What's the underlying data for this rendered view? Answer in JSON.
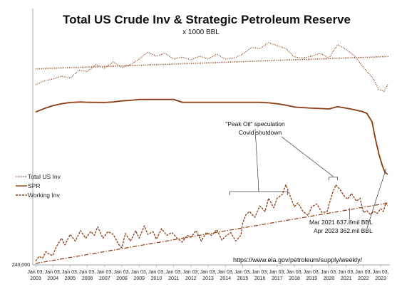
{
  "chart_data": {
    "type": "line",
    "title": "Total US Crude Inv & Strategic Petroleum Reserve",
    "subtitle": "x 1000 BBL",
    "y_tick_label": "240,000",
    "x_ticks": [
      {
        "year": 2003,
        "l1": "Jan 03,",
        "l2": "2003"
      },
      {
        "year": 2004,
        "l1": "Jan 03,",
        "l2": "2004"
      },
      {
        "year": 2005,
        "l1": "Jan 03,",
        "l2": "2005"
      },
      {
        "year": 2006,
        "l1": "Jan 03,",
        "l2": "2006"
      },
      {
        "year": 2007,
        "l1": "Jan 03,",
        "l2": "2007"
      },
      {
        "year": 2008,
        "l1": "Jan 03,",
        "l2": "2008"
      },
      {
        "year": 2009,
        "l1": "Jan 03,",
        "l2": "2009"
      },
      {
        "year": 2010,
        "l1": "Jan 03,",
        "l2": "2010"
      },
      {
        "year": 2011,
        "l1": "Jan 03,",
        "l2": "2011"
      },
      {
        "year": 2012,
        "l1": "Jan 03,",
        "l2": "2012"
      },
      {
        "year": 2013,
        "l1": "Jan 03,",
        "l2": "2013"
      },
      {
        "year": 2014,
        "l1": "Jan 03,",
        "l2": "2014"
      },
      {
        "year": 2015,
        "l1": "Jan 03,",
        "l2": "2015"
      },
      {
        "year": 2016,
        "l1": "Jan 03,",
        "l2": "2016"
      },
      {
        "year": 2017,
        "l1": "Jan 03,",
        "l2": "2017"
      },
      {
        "year": 2018,
        "l1": "Jan 03,",
        "l2": "2018"
      },
      {
        "year": 2019,
        "l1": "Jan 03,",
        "l2": "2019"
      },
      {
        "year": 2020,
        "l1": "Jan 03,",
        "l2": "2020"
      },
      {
        "year": 2021,
        "l1": "Jan 03,",
        "l2": "2021"
      },
      {
        "year": 2022,
        "l1": "Jan 03,",
        "l2": "2022"
      },
      {
        "year": 2023,
        "l1": "Jan 03,",
        "l2": "2023"
      }
    ],
    "x_range": [
      2003.0,
      2023.45
    ],
    "y_range": [
      240000,
      1450000
    ],
    "grid": false,
    "legend_position": "middle-left",
    "series": [
      {
        "name": "Total US Inv",
        "style": "dotted",
        "color": "#8B3A12",
        "points": [
          [
            2003.0,
            1185000
          ],
          [
            2003.5,
            1205000
          ],
          [
            2004.0,
            1215000
          ],
          [
            2004.5,
            1230000
          ],
          [
            2005.0,
            1220000
          ],
          [
            2005.5,
            1260000
          ],
          [
            2006.0,
            1255000
          ],
          [
            2006.5,
            1290000
          ],
          [
            2007.0,
            1270000
          ],
          [
            2007.5,
            1305000
          ],
          [
            2008.0,
            1275000
          ],
          [
            2008.5,
            1290000
          ],
          [
            2009.0,
            1320000
          ],
          [
            2009.5,
            1355000
          ],
          [
            2010.0,
            1335000
          ],
          [
            2010.5,
            1350000
          ],
          [
            2011.0,
            1320000
          ],
          [
            2011.5,
            1330000
          ],
          [
            2012.0,
            1315000
          ],
          [
            2012.5,
            1335000
          ],
          [
            2013.0,
            1320000
          ],
          [
            2013.5,
            1345000
          ],
          [
            2014.0,
            1320000
          ],
          [
            2014.5,
            1325000
          ],
          [
            2015.0,
            1345000
          ],
          [
            2015.5,
            1380000
          ],
          [
            2016.0,
            1375000
          ],
          [
            2016.5,
            1405000
          ],
          [
            2017.0,
            1390000
          ],
          [
            2017.5,
            1375000
          ],
          [
            2018.0,
            1330000
          ],
          [
            2018.5,
            1325000
          ],
          [
            2019.0,
            1335000
          ],
          [
            2019.5,
            1350000
          ],
          [
            2020.0,
            1325000
          ],
          [
            2020.5,
            1395000
          ],
          [
            2021.0,
            1370000
          ],
          [
            2021.5,
            1335000
          ],
          [
            2022.0,
            1275000
          ],
          [
            2022.5,
            1225000
          ],
          [
            2022.9,
            1160000
          ],
          [
            2023.2,
            1150000
          ],
          [
            2023.4,
            1185000
          ]
        ]
      },
      {
        "name": "SPR",
        "style": "solid",
        "color": "#8B3A12",
        "points": [
          [
            2003.0,
            1042000
          ],
          [
            2003.5,
            1060000
          ],
          [
            2004.0,
            1075000
          ],
          [
            2004.5,
            1085000
          ],
          [
            2005.0,
            1092000
          ],
          [
            2005.6,
            1095000
          ],
          [
            2006.0,
            1093000
          ],
          [
            2007.0,
            1092000
          ],
          [
            2007.5,
            1095000
          ],
          [
            2008.0,
            1100000
          ],
          [
            2008.5,
            1103000
          ],
          [
            2009.0,
            1108000
          ],
          [
            2010.0,
            1108000
          ],
          [
            2011.0,
            1108000
          ],
          [
            2011.5,
            1093000
          ],
          [
            2012.0,
            1093000
          ],
          [
            2013.0,
            1093000
          ],
          [
            2014.0,
            1093000
          ],
          [
            2015.0,
            1093000
          ],
          [
            2016.0,
            1093000
          ],
          [
            2016.5,
            1090000
          ],
          [
            2017.0,
            1085000
          ],
          [
            2017.5,
            1078000
          ],
          [
            2018.0,
            1068000
          ],
          [
            2018.5,
            1065000
          ],
          [
            2019.0,
            1062000
          ],
          [
            2019.5,
            1060000
          ],
          [
            2020.0,
            1058000
          ],
          [
            2020.5,
            1070000
          ],
          [
            2021.0,
            1062000
          ],
          [
            2021.25,
            1058000
          ],
          [
            2021.5,
            1053000
          ],
          [
            2021.9,
            1045000
          ],
          [
            2022.2,
            1035000
          ],
          [
            2022.5,
            990000
          ],
          [
            2022.7,
            900000
          ],
          [
            2022.9,
            820000
          ],
          [
            2023.1,
            760000
          ],
          [
            2023.25,
            725000
          ],
          [
            2023.4,
            715000
          ]
        ]
      },
      {
        "name": "Working Inv",
        "style": "dashed",
        "color": "#8B3A12",
        "points": [
          [
            2003.0,
            260000
          ],
          [
            2003.2,
            285000
          ],
          [
            2003.4,
            275000
          ],
          [
            2003.6,
            310000
          ],
          [
            2003.8,
            295000
          ],
          [
            2004.0,
            290000
          ],
          [
            2004.2,
            335000
          ],
          [
            2004.5,
            380000
          ],
          [
            2004.7,
            345000
          ],
          [
            2005.0,
            400000
          ],
          [
            2005.3,
            365000
          ],
          [
            2005.6,
            420000
          ],
          [
            2005.9,
            380000
          ],
          [
            2006.2,
            415000
          ],
          [
            2006.4,
            395000
          ],
          [
            2006.6,
            440000
          ],
          [
            2006.9,
            380000
          ],
          [
            2007.2,
            415000
          ],
          [
            2007.5,
            400000
          ],
          [
            2007.8,
            350000
          ],
          [
            2008.0,
            330000
          ],
          [
            2008.2,
            405000
          ],
          [
            2008.5,
            365000
          ],
          [
            2008.8,
            420000
          ],
          [
            2009.0,
            380000
          ],
          [
            2009.3,
            445000
          ],
          [
            2009.5,
            400000
          ],
          [
            2009.8,
            415000
          ],
          [
            2010.0,
            375000
          ],
          [
            2010.3,
            430000
          ],
          [
            2010.6,
            395000
          ],
          [
            2010.9,
            410000
          ],
          [
            2011.2,
            380000
          ],
          [
            2011.5,
            360000
          ],
          [
            2011.8,
            395000
          ],
          [
            2012.0,
            385000
          ],
          [
            2012.3,
            420000
          ],
          [
            2012.6,
            365000
          ],
          [
            2012.9,
            410000
          ],
          [
            2013.2,
            395000
          ],
          [
            2013.5,
            425000
          ],
          [
            2013.8,
            370000
          ],
          [
            2014.0,
            390000
          ],
          [
            2014.3,
            410000
          ],
          [
            2014.6,
            365000
          ],
          [
            2014.9,
            395000
          ],
          [
            2015.0,
            460000
          ],
          [
            2015.2,
            505000
          ],
          [
            2015.4,
            520000
          ],
          [
            2015.7,
            490000
          ],
          [
            2016.0,
            550000
          ],
          [
            2016.3,
            520000
          ],
          [
            2016.5,
            590000
          ],
          [
            2016.8,
            540000
          ],
          [
            2017.0,
            590000
          ],
          [
            2017.3,
            610000
          ],
          [
            2017.5,
            660000
          ],
          [
            2017.8,
            590000
          ],
          [
            2018.0,
            545000
          ],
          [
            2018.2,
            565000
          ],
          [
            2018.5,
            520000
          ],
          [
            2018.8,
            500000
          ],
          [
            2019.0,
            545000
          ],
          [
            2019.3,
            560000
          ],
          [
            2019.6,
            515000
          ],
          [
            2019.9,
            520000
          ],
          [
            2020.0,
            555000
          ],
          [
            2020.2,
            615000
          ],
          [
            2020.4,
            660000
          ],
          [
            2020.6,
            640000
          ],
          [
            2020.9,
            600000
          ],
          [
            2021.1,
            585000
          ],
          [
            2021.3,
            615000
          ],
          [
            2021.6,
            575000
          ],
          [
            2021.8,
            590000
          ],
          [
            2022.0,
            515000
          ],
          [
            2022.2,
            525000
          ],
          [
            2022.4,
            505000
          ],
          [
            2022.6,
            520000
          ],
          [
            2022.8,
            510000
          ],
          [
            2023.0,
            535000
          ],
          [
            2023.15,
            520000
          ],
          [
            2023.3,
            565000
          ],
          [
            2023.4,
            550000
          ]
        ]
      }
    ],
    "trendlines": [
      {
        "of": "Total US Inv",
        "style": "dotted",
        "from": [
          2003.0,
          1268000
        ],
        "to": [
          2023.45,
          1333000
        ]
      },
      {
        "of": "Working Inv",
        "style": "dash-dot",
        "from": [
          2003.0,
          248000
        ],
        "to": [
          2023.45,
          565000
        ]
      }
    ],
    "legend": [
      "Total US Inv",
      "SPR",
      "Working Inv"
    ],
    "annotations": {
      "peak_oil": "\"Peak Oil\" speculation",
      "covid": "Covid shutdown",
      "mar2021": "Mar 2021 637.8mil BBL",
      "apr2023": "Apr 2023 362.mil BBL",
      "source": "https://www.eia.gov/petroleum/supply/weekly/"
    },
    "annotation_anchors": {
      "peak_bracket": [
        2014.25,
        2017.6,
        610000
      ],
      "covid_bracket": [
        2020.0,
        2020.5,
        700000
      ],
      "mar2021_point": [
        2021.2,
        560000
      ],
      "apr2023_point": [
        2023.4,
        760000
      ]
    }
  }
}
